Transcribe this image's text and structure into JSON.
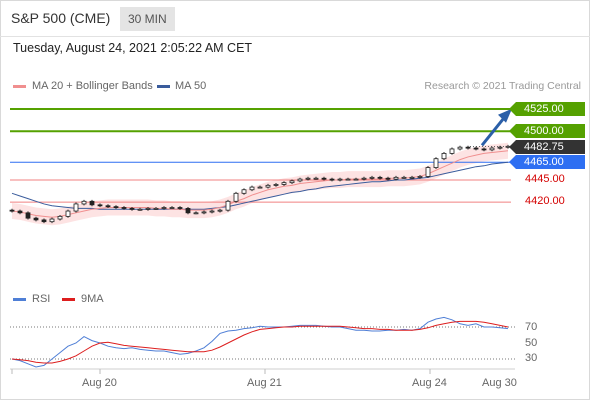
{
  "header": {
    "symbol": "S&P 500 (CME)",
    "timeframe": "30 MIN"
  },
  "timestamp": "Tuesday, August 24, 2021 2:05:22 AM CET",
  "legend": [
    {
      "label": "MA 20 + Bollinger Bands",
      "color": "#f08f8f"
    },
    {
      "label": "MA 50",
      "color": "#3a5c9c"
    }
  ],
  "credit": "Research © 2021 Trading Central",
  "colors": {
    "resistance": "#55a100",
    "support_ref": "#2e6ff2",
    "support": "#e04040",
    "price_tag": "#333333",
    "arrow": "#2b5fa8"
  },
  "levels": [
    {
      "label": "4525.00",
      "value": 4525,
      "kind": "resistance"
    },
    {
      "label": "4500.00",
      "value": 4500,
      "kind": "resistance"
    },
    {
      "label": "4482.75",
      "value": 4482.75,
      "kind": "price"
    },
    {
      "label": "4465.00",
      "value": 4465,
      "kind": "pivot"
    },
    {
      "label": "4445.00",
      "value": 4445,
      "kind": "support"
    },
    {
      "label": "4420.00",
      "value": 4420,
      "kind": "support"
    }
  ],
  "rsi_legend": [
    {
      "label": "RSI",
      "color": "#4f7fd6"
    },
    {
      "label": "9MA",
      "color": "#dd1e1e"
    }
  ],
  "rsi_ticks": [
    70,
    50,
    30
  ],
  "x_ticks": [
    "Aug 20",
    "Aug 21",
    "Aug 24",
    "Aug 30"
  ],
  "chart_data": [
    {
      "type": "line",
      "title": "S&P 500 (CME) 30 MIN",
      "ylim": [
        4398,
        4532
      ],
      "y_unit": "index points",
      "x_ticks": [
        "Aug 20",
        "Aug 21",
        "Aug 24",
        "Aug 30"
      ],
      "series": [
        {
          "name": "Price",
          "values": [
            4410,
            4408,
            4402,
            4400,
            4398,
            4401,
            4404,
            4410,
            4418,
            4421,
            4417,
            4416,
            4415,
            4414,
            4413,
            4412,
            4412,
            4413,
            4413,
            4414,
            4414,
            4413,
            4408,
            4408,
            4409,
            4410,
            4411,
            4421,
            4430,
            4434,
            4437,
            4437,
            4439,
            4440,
            4442,
            4444,
            4446,
            4447,
            4447,
            4446,
            4445,
            4446,
            4446,
            4446,
            4447,
            4448,
            4447,
            4446,
            4448,
            4448,
            4448,
            4449,
            4459,
            4469,
            4475,
            4480,
            4482,
            4481,
            4480,
            4479,
            4481,
            4482,
            4483
          ]
        },
        {
          "name": "MA 20 + Bollinger Bands",
          "values": [
            4410,
            4409,
            4407,
            4405,
            4404,
            4403,
            4404,
            4406,
            4408,
            4410,
            4412,
            4413,
            4414,
            4414,
            4414,
            4414,
            4414,
            4414,
            4413,
            4413,
            4412,
            4412,
            4411,
            4411,
            4411,
            4412,
            4414,
            4417,
            4421,
            4424,
            4428,
            4431,
            4434,
            4436,
            4438,
            4439,
            4441,
            4442,
            4443,
            4444,
            4445,
            4445,
            4446,
            4446,
            4446,
            4446,
            4446,
            4447,
            4447,
            4447,
            4448,
            4449,
            4452,
            4456,
            4460,
            4464,
            4468,
            4471,
            4473,
            4475,
            4476,
            4477,
            4478
          ]
        },
        {
          "name": "MA 50",
          "values": [
            4430,
            4427,
            4424,
            4421,
            4418,
            4416,
            4415,
            4414,
            4413,
            4413,
            4413,
            4412,
            4412,
            4412,
            4412,
            4412,
            4412,
            4412,
            4412,
            4412,
            4412,
            4412,
            4412,
            4412,
            4412,
            4413,
            4414,
            4415,
            4417,
            4419,
            4421,
            4423,
            4425,
            4427,
            4429,
            4431,
            4432,
            4434,
            4435,
            4437,
            4438,
            4439,
            4440,
            4441,
            4442,
            4443,
            4443,
            4444,
            4445,
            4445,
            4446,
            4447,
            4448,
            4450,
            4452,
            4454,
            4456,
            4458,
            4460,
            4461,
            4463,
            4464,
            4465
          ]
        }
      ]
    },
    {
      "type": "line",
      "title": "",
      "ylim": [
        0,
        100
      ],
      "y_ticks": [
        70,
        50,
        30
      ],
      "series": [
        {
          "name": "RSI",
          "values": [
            30,
            28,
            24,
            20,
            22,
            30,
            38,
            46,
            50,
            58,
            53,
            50,
            46,
            44,
            43,
            44,
            42,
            41,
            40,
            40,
            38,
            36,
            37,
            40,
            44,
            52,
            62,
            65,
            66,
            68,
            69,
            71,
            70,
            70,
            70,
            71,
            72,
            72,
            72,
            71,
            70,
            70,
            68,
            66,
            66,
            65,
            65,
            66,
            66,
            67,
            66,
            68,
            76,
            80,
            82,
            79,
            74,
            72,
            74,
            70,
            70,
            69,
            68
          ]
        },
        {
          "name": "9MA",
          "values": [
            30,
            29,
            28,
            26,
            25,
            25,
            27,
            30,
            34,
            40,
            46,
            50,
            51,
            49,
            47,
            46,
            45,
            44,
            43,
            42,
            41,
            40,
            39,
            39,
            39,
            41,
            45,
            50,
            55,
            60,
            64,
            67,
            68,
            69,
            70,
            70,
            71,
            71,
            71,
            71,
            71,
            71,
            70,
            69,
            68,
            68,
            67,
            67,
            66,
            66,
            66,
            67,
            69,
            72,
            74,
            76,
            77,
            77,
            77,
            76,
            74,
            72,
            70
          ]
        }
      ]
    }
  ]
}
